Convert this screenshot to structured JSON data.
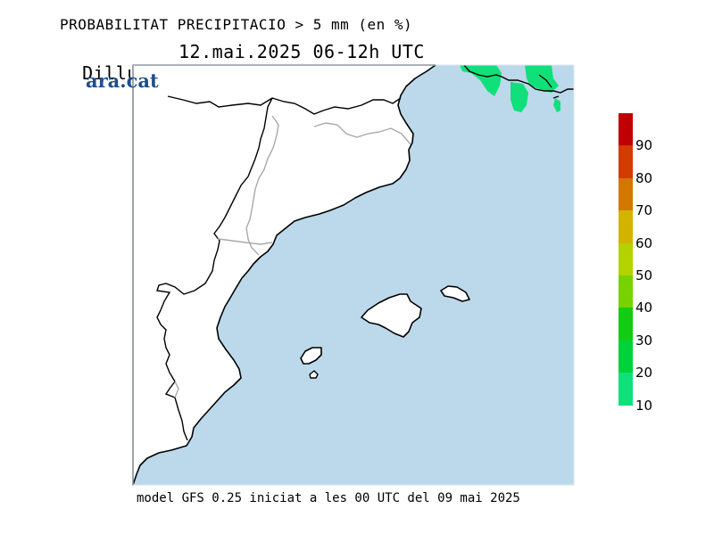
{
  "title": "PROBABILITAT PRECIPITACIO > 5 mm (en %)",
  "subtitle": {
    "day": "Dilluns",
    "date": "12.mai.2025 06-12h UTC"
  },
  "logo": "ara.cat",
  "footer": "model GFS 0.25 iniciat a les 00 UTC del 09 mai 2025",
  "colors": {
    "sea": "#bcd8eb",
    "land": "#ffffff",
    "coast": "#000000",
    "border": "#a9a9a9",
    "precip_low": "#10e07a"
  },
  "legend": {
    "labels": [
      "90",
      "80",
      "70",
      "60",
      "50",
      "40",
      "30",
      "20",
      "10"
    ],
    "colors": [
      "#c00000",
      "#d23c00",
      "#d27800",
      "#d2b400",
      "#b4d200",
      "#78d200",
      "#14cc14",
      "#00d23c",
      "#10e07a"
    ]
  }
}
